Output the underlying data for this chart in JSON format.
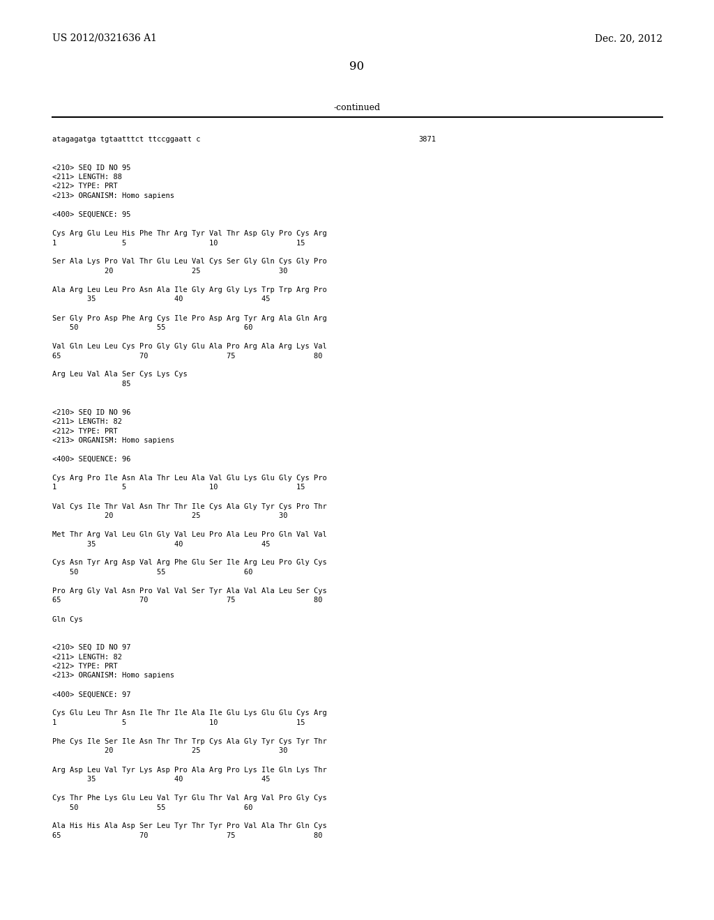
{
  "header_left": "US 2012/0321636 A1",
  "header_right": "Dec. 20, 2012",
  "page_number": "90",
  "continued_text": "-continued",
  "background_color": "#ffffff",
  "text_color": "#000000",
  "lines": [
    {
      "text": "atagagatga tgtaatttct ttccggaatt c",
      "tab_right": "3871"
    },
    {
      "text": ""
    },
    {
      "text": ""
    },
    {
      "text": "<210> SEQ ID NO 95"
    },
    {
      "text": "<211> LENGTH: 88"
    },
    {
      "text": "<212> TYPE: PRT"
    },
    {
      "text": "<213> ORGANISM: Homo sapiens"
    },
    {
      "text": ""
    },
    {
      "text": "<400> SEQUENCE: 95"
    },
    {
      "text": ""
    },
    {
      "text": "Cys Arg Glu Leu His Phe Thr Arg Tyr Val Thr Asp Gly Pro Cys Arg"
    },
    {
      "text": "1               5                   10                  15"
    },
    {
      "text": ""
    },
    {
      "text": "Ser Ala Lys Pro Val Thr Glu Leu Val Cys Ser Gly Gln Cys Gly Pro"
    },
    {
      "text": "            20                  25                  30"
    },
    {
      "text": ""
    },
    {
      "text": "Ala Arg Leu Leu Pro Asn Ala Ile Gly Arg Gly Lys Trp Trp Arg Pro"
    },
    {
      "text": "        35                  40                  45"
    },
    {
      "text": ""
    },
    {
      "text": "Ser Gly Pro Asp Phe Arg Cys Ile Pro Asp Arg Tyr Arg Ala Gln Arg"
    },
    {
      "text": "    50                  55                  60"
    },
    {
      "text": ""
    },
    {
      "text": "Val Gln Leu Leu Cys Pro Gly Gly Glu Ala Pro Arg Ala Arg Lys Val"
    },
    {
      "text": "65                  70                  75                  80"
    },
    {
      "text": ""
    },
    {
      "text": "Arg Leu Val Ala Ser Cys Lys Cys"
    },
    {
      "text": "                85"
    },
    {
      "text": ""
    },
    {
      "text": ""
    },
    {
      "text": "<210> SEQ ID NO 96"
    },
    {
      "text": "<211> LENGTH: 82"
    },
    {
      "text": "<212> TYPE: PRT"
    },
    {
      "text": "<213> ORGANISM: Homo sapiens"
    },
    {
      "text": ""
    },
    {
      "text": "<400> SEQUENCE: 96"
    },
    {
      "text": ""
    },
    {
      "text": "Cys Arg Pro Ile Asn Ala Thr Leu Ala Val Glu Lys Glu Gly Cys Pro"
    },
    {
      "text": "1               5                   10                  15"
    },
    {
      "text": ""
    },
    {
      "text": "Val Cys Ile Thr Val Asn Thr Thr Ile Cys Ala Gly Tyr Cys Pro Thr"
    },
    {
      "text": "            20                  25                  30"
    },
    {
      "text": ""
    },
    {
      "text": "Met Thr Arg Val Leu Gln Gly Val Leu Pro Ala Leu Pro Gln Val Val"
    },
    {
      "text": "        35                  40                  45"
    },
    {
      "text": ""
    },
    {
      "text": "Cys Asn Tyr Arg Asp Val Arg Phe Glu Ser Ile Arg Leu Pro Gly Cys"
    },
    {
      "text": "    50                  55                  60"
    },
    {
      "text": ""
    },
    {
      "text": "Pro Arg Gly Val Asn Pro Val Val Ser Tyr Ala Val Ala Leu Ser Cys"
    },
    {
      "text": "65                  70                  75                  80"
    },
    {
      "text": ""
    },
    {
      "text": "Gln Cys"
    },
    {
      "text": ""
    },
    {
      "text": ""
    },
    {
      "text": "<210> SEQ ID NO 97"
    },
    {
      "text": "<211> LENGTH: 82"
    },
    {
      "text": "<212> TYPE: PRT"
    },
    {
      "text": "<213> ORGANISM: Homo sapiens"
    },
    {
      "text": ""
    },
    {
      "text": "<400> SEQUENCE: 97"
    },
    {
      "text": ""
    },
    {
      "text": "Cys Glu Leu Thr Asn Ile Thr Ile Ala Ile Glu Lys Glu Glu Cys Arg"
    },
    {
      "text": "1               5                   10                  15"
    },
    {
      "text": ""
    },
    {
      "text": "Phe Cys Ile Ser Ile Asn Thr Thr Trp Cys Ala Gly Tyr Cys Tyr Thr"
    },
    {
      "text": "            20                  25                  30"
    },
    {
      "text": ""
    },
    {
      "text": "Arg Asp Leu Val Tyr Lys Asp Pro Ala Arg Pro Lys Ile Gln Lys Thr"
    },
    {
      "text": "        35                  40                  45"
    },
    {
      "text": ""
    },
    {
      "text": "Cys Thr Phe Lys Glu Leu Val Tyr Glu Thr Val Arg Val Pro Gly Cys"
    },
    {
      "text": "    50                  55                  60"
    },
    {
      "text": ""
    },
    {
      "text": "Ala His His Ala Asp Ser Leu Tyr Thr Tyr Pro Val Ala Thr Gln Cys"
    },
    {
      "text": "65                  70                  75                  80"
    }
  ]
}
